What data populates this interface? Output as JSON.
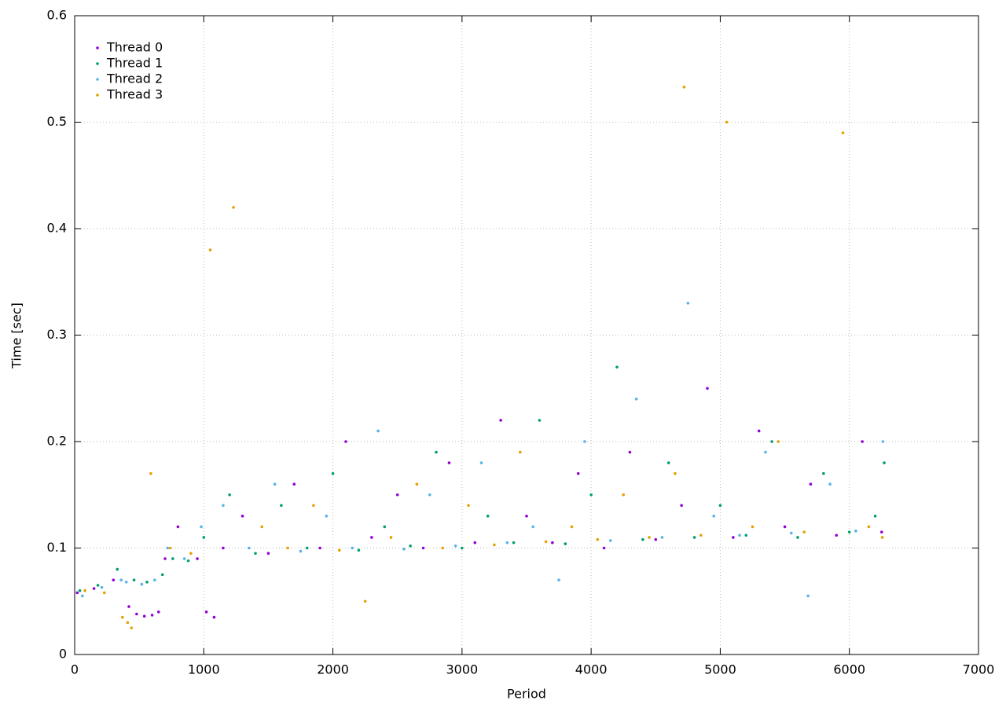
{
  "chart_data": {
    "type": "scatter",
    "x_label": "Period",
    "y_label": "Time [sec]",
    "xlim": [
      0,
      7000
    ],
    "xticks": [
      0,
      1000,
      2000,
      3000,
      4000,
      5000,
      6000,
      7000
    ],
    "ylim": [
      0,
      0.6
    ],
    "yticks": [
      0,
      0.1,
      0.2,
      0.3,
      0.4,
      0.5,
      0.6
    ],
    "grid": true,
    "legend": "top-left",
    "series": [
      {
        "name": "Thread 0",
        "color": "#9400d3",
        "x": [
          20,
          150,
          300,
          420,
          480,
          540,
          600,
          650,
          700,
          800,
          950,
          1020,
          1080,
          1150,
          1300,
          1500,
          1700,
          1900,
          2100,
          2300,
          2500,
          2700,
          2900,
          3100,
          3300,
          3500,
          3700,
          3900,
          4100,
          4300,
          4500,
          4700,
          4900,
          5100,
          5300,
          5500,
          5700,
          5900,
          6100,
          6250
        ],
        "y": [
          0.058,
          0.062,
          0.07,
          0.045,
          0.038,
          0.036,
          0.037,
          0.04,
          0.09,
          0.12,
          0.09,
          0.04,
          0.035,
          0.1,
          0.13,
          0.095,
          0.16,
          0.1,
          0.2,
          0.11,
          0.15,
          0.1,
          0.18,
          0.105,
          0.22,
          0.13,
          0.105,
          0.17,
          0.1,
          0.19,
          0.108,
          0.14,
          0.25,
          0.11,
          0.21,
          0.12,
          0.16,
          0.112,
          0.2,
          0.115
        ]
      },
      {
        "name": "Thread 1",
        "color": "#009e73",
        "x": [
          40,
          180,
          330,
          460,
          560,
          680,
          760,
          880,
          1000,
          1200,
          1400,
          1600,
          1800,
          2000,
          2200,
          2400,
          2600,
          2800,
          3000,
          3200,
          3400,
          3600,
          3800,
          4000,
          4200,
          4400,
          4600,
          4800,
          5000,
          5200,
          5400,
          5600,
          5800,
          6000,
          6200,
          6270
        ],
        "y": [
          0.06,
          0.065,
          0.08,
          0.07,
          0.068,
          0.075,
          0.09,
          0.088,
          0.11,
          0.15,
          0.095,
          0.14,
          0.1,
          0.17,
          0.098,
          0.12,
          0.102,
          0.19,
          0.1,
          0.13,
          0.105,
          0.22,
          0.104,
          0.15,
          0.27,
          0.108,
          0.18,
          0.11,
          0.14,
          0.112,
          0.2,
          0.11,
          0.17,
          0.115,
          0.13,
          0.18
        ]
      },
      {
        "name": "Thread 2",
        "color": "#56b4e9",
        "x": [
          60,
          210,
          360,
          400,
          520,
          620,
          720,
          850,
          980,
          1150,
          1350,
          1550,
          1750,
          1950,
          2150,
          2350,
          2550,
          2750,
          2950,
          3150,
          3350,
          3550,
          3750,
          3950,
          4150,
          4350,
          4550,
          4750,
          4950,
          5150,
          5350,
          5550,
          5680,
          5850,
          6050,
          6260
        ],
        "y": [
          0.055,
          0.063,
          0.07,
          0.068,
          0.066,
          0.07,
          0.1,
          0.09,
          0.12,
          0.14,
          0.1,
          0.16,
          0.097,
          0.13,
          0.1,
          0.21,
          0.099,
          0.15,
          0.102,
          0.18,
          0.105,
          0.12,
          0.07,
          0.2,
          0.107,
          0.24,
          0.11,
          0.33,
          0.13,
          0.112,
          0.19,
          0.114,
          0.055,
          0.16,
          0.116,
          0.2
        ]
      },
      {
        "name": "Thread 3",
        "color": "#e69f00",
        "x": [
          80,
          230,
          370,
          410,
          440,
          590,
          740,
          900,
          1050,
          1230,
          1450,
          1650,
          1850,
          2050,
          2250,
          2450,
          2650,
          2850,
          3050,
          3250,
          3450,
          3650,
          3850,
          4050,
          4250,
          4450,
          4650,
          4850,
          5050,
          5250,
          5450,
          5650,
          5950,
          6150,
          6255,
          4720
        ],
        "y": [
          0.06,
          0.058,
          0.035,
          0.03,
          0.025,
          0.17,
          0.1,
          0.095,
          0.38,
          0.42,
          0.12,
          0.1,
          0.14,
          0.098,
          0.05,
          0.11,
          0.16,
          0.1,
          0.14,
          0.103,
          0.19,
          0.106,
          0.12,
          0.108,
          0.15,
          0.11,
          0.17,
          0.112,
          0.5,
          0.12,
          0.2,
          0.115,
          0.49,
          0.12,
          0.11,
          0.533
        ]
      }
    ]
  }
}
